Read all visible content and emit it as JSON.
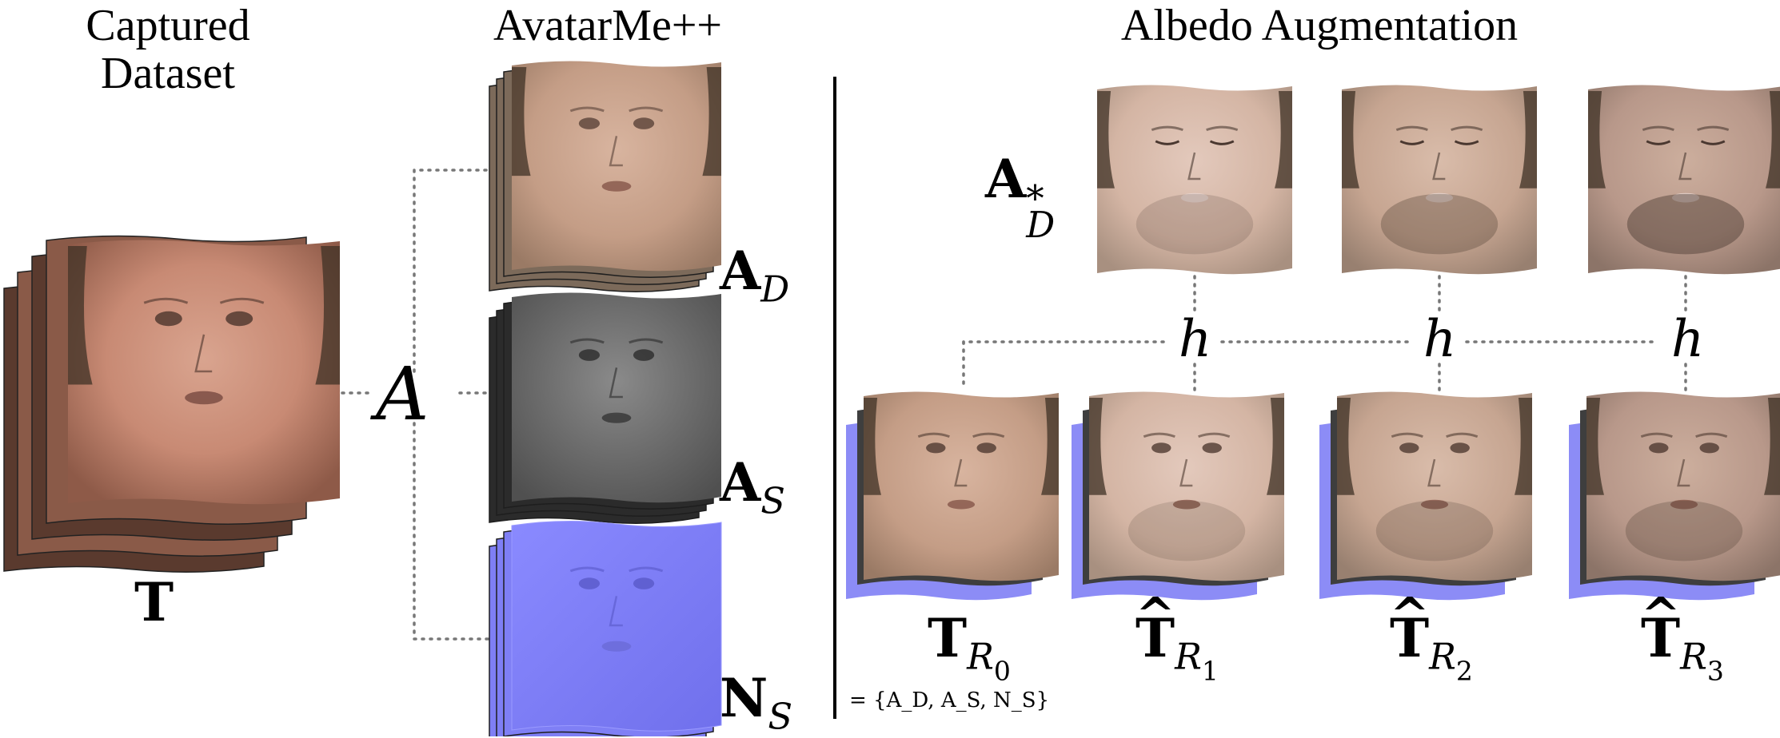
{
  "titles": {
    "captured": "Captured\nDataset",
    "avatarme": "AvatarMe++",
    "albedo": "Albedo Augmentation"
  },
  "symbols": {
    "T": "T",
    "A_cal": "A",
    "A_D": {
      "base": "A",
      "sub": "D"
    },
    "A_S": {
      "base": "A",
      "sub": "S"
    },
    "N_S": {
      "base": "N",
      "sub": "S"
    },
    "A_D_star": {
      "base": "A",
      "sub": "D",
      "sup": "*"
    },
    "h": "h",
    "T_R0": {
      "base": "T",
      "sub": "R",
      "subsub": "0"
    },
    "T_R1": {
      "base": "T",
      "sub": "R",
      "subsub": "1"
    },
    "T_R2": {
      "base": "T",
      "sub": "R",
      "subsub": "2"
    },
    "T_R3": {
      "base": "T",
      "sub": "R",
      "subsub": "3"
    },
    "set_note": "= {A_D, A_S, N_S}"
  },
  "colors": {
    "skin_mid": "#c89a83",
    "skin_dark": "#a26c55",
    "hair": "#3f3225",
    "spec_gray": "#6a6a6a",
    "normal_blue": "#7f7ff5",
    "shadow_dark": "#3e3e3e",
    "dotted_line": "#777777"
  }
}
